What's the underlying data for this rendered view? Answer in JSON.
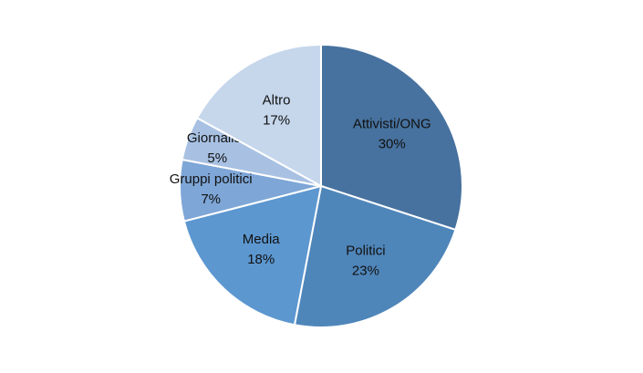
{
  "chart_data": {
    "type": "pie",
    "categories": [
      "Attivisti/ONG",
      "Politici",
      "Media",
      "Gruppi politici",
      "Giornalisti",
      "Altro"
    ],
    "values": [
      30,
      23,
      18,
      7,
      5,
      17
    ],
    "value_labels": [
      "30%",
      "23%",
      "18%",
      "7%",
      "5%",
      "17%"
    ],
    "colors": [
      "#47729f",
      "#4f86ba",
      "#5c97d0",
      "#7ea6d7",
      "#a8c1e3",
      "#c6d7ec"
    ]
  }
}
